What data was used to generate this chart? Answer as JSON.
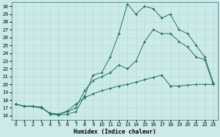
{
  "title": "",
  "xlabel": "Humidex (Indice chaleur)",
  "ylabel": "",
  "bg_color": "#cceaea",
  "grid_color": "#aad4d4",
  "line_color": "#1a6b5a",
  "xlim": [
    -0.5,
    23.5
  ],
  "ylim": [
    15.5,
    30.5
  ],
  "xticks": [
    0,
    1,
    2,
    3,
    4,
    5,
    6,
    7,
    8,
    9,
    10,
    11,
    12,
    13,
    14,
    15,
    16,
    17,
    18,
    19,
    20,
    21,
    22,
    23
  ],
  "yticks": [
    16,
    17,
    18,
    19,
    20,
    21,
    22,
    23,
    24,
    25,
    26,
    27,
    28,
    29,
    30
  ],
  "line1_x": [
    0,
    1,
    2,
    3,
    4,
    5,
    6,
    7,
    8,
    9,
    10,
    11,
    12,
    13,
    14,
    15,
    16,
    17,
    18,
    19,
    20,
    21,
    22,
    23
  ],
  "line1_y": [
    17.5,
    17.2,
    17.2,
    17.1,
    16.2,
    16.1,
    16.2,
    16.5,
    18.5,
    21.2,
    21.5,
    23.5,
    26.5,
    30.3,
    29.0,
    30.0,
    29.7,
    28.5,
    29.0,
    27.0,
    26.5,
    25.0,
    23.5,
    20.2
  ],
  "line2_x": [
    0,
    1,
    2,
    3,
    4,
    5,
    6,
    7,
    8,
    9,
    10,
    11,
    12,
    13,
    14,
    15,
    16,
    17,
    18,
    19,
    20,
    21,
    22,
    23
  ],
  "line2_y": [
    17.5,
    17.2,
    17.2,
    17.0,
    16.3,
    16.2,
    16.5,
    17.0,
    19.2,
    20.5,
    21.0,
    21.5,
    22.5,
    22.0,
    23.0,
    25.5,
    27.0,
    26.5,
    26.5,
    25.5,
    24.8,
    23.5,
    23.2,
    20.0
  ],
  "line3_x": [
    0,
    1,
    2,
    3,
    4,
    5,
    6,
    7,
    8,
    9,
    10,
    11,
    12,
    13,
    14,
    15,
    16,
    17,
    18,
    19,
    20,
    21,
    22,
    23
  ],
  "line3_y": [
    17.5,
    17.2,
    17.2,
    17.0,
    16.3,
    16.2,
    16.6,
    17.5,
    18.3,
    18.8,
    19.2,
    19.5,
    19.8,
    20.0,
    20.3,
    20.6,
    20.9,
    21.2,
    19.8,
    19.8,
    19.9,
    20.0,
    20.0,
    20.0
  ]
}
